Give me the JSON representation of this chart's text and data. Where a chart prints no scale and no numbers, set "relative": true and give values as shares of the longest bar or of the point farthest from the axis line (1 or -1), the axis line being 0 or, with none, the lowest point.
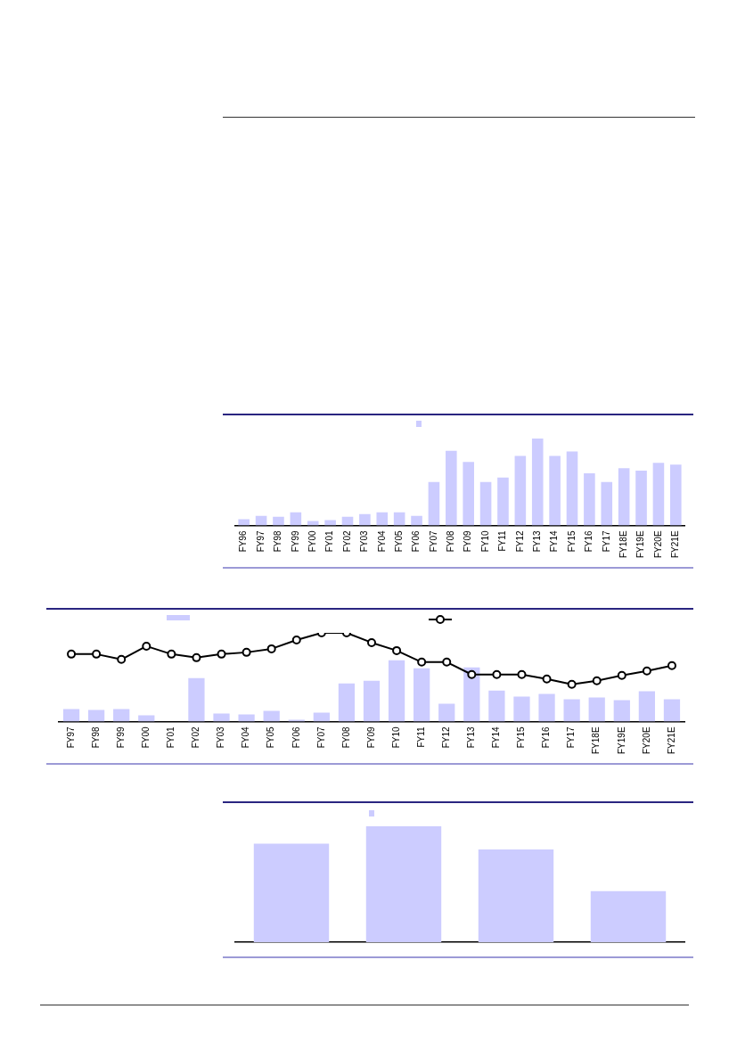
{
  "chart_data": [
    {
      "type": "bar",
      "relative": true,
      "grid": false,
      "categories": [
        "FY96",
        "FY97",
        "FY98",
        "FY99",
        "FY00",
        "FY01",
        "FY02",
        "FY03",
        "FY04",
        "FY05",
        "FY06",
        "FY07",
        "FY08",
        "FY09",
        "FY10",
        "FY11",
        "FY12",
        "FY13",
        "FY14",
        "FY15",
        "FY16",
        "FY17",
        "FY18E",
        "FY19E",
        "FY20E",
        "FY21E"
      ],
      "series": [
        {
          "color": "#ccccff",
          "values": [
            0.07,
            0.11,
            0.1,
            0.15,
            0.05,
            0.06,
            0.1,
            0.13,
            0.15,
            0.15,
            0.11,
            0.5,
            0.86,
            0.73,
            0.5,
            0.55,
            0.8,
            1,
            0.8,
            0.85,
            0.6,
            0.5,
            0.66,
            0.63,
            0.72,
            0.7
          ]
        }
      ]
    },
    {
      "type": "bar",
      "relative": true,
      "grid": false,
      "categories": [
        "FY97",
        "FY98",
        "FY99",
        "FY00",
        "FY01",
        "FY02",
        "FY03",
        "FY04",
        "FY05",
        "FY06",
        "FY07",
        "FY08",
        "FY09",
        "FY10",
        "FY11",
        "FY12",
        "FY13",
        "FY14",
        "FY15",
        "FY16",
        "FY17",
        "FY18E",
        "FY19E",
        "FY20E",
        "FY21E"
      ],
      "series": [
        {
          "color": "#ccccff",
          "values": [
            0.14,
            0.13,
            0.14,
            0.07,
            0,
            0.49,
            0.09,
            0.08,
            0.12,
            0.02,
            0.1,
            0.43,
            0.46,
            0.69,
            0.6,
            0.2,
            0.61,
            0.35,
            0.28,
            0.31,
            0.25,
            0.27,
            0.24,
            0.34,
            0.25
          ]
        },
        {
          "type": "line",
          "color": "#000000",
          "marker": "circle",
          "values": [
            0.76,
            0.76,
            0.7,
            0.85,
            0.76,
            0.72,
            0.76,
            0.78,
            0.82,
            0.92,
            1,
            1,
            0.89,
            0.8,
            0.67,
            0.67,
            0.53,
            0.53,
            0.53,
            0.48,
            0.42,
            0.46,
            0.52,
            0.57,
            0.63
          ]
        }
      ]
    },
    {
      "type": "bar",
      "relative": true,
      "grid": false,
      "categories": [
        null,
        null,
        null,
        null
      ],
      "series": [
        {
          "color": "#ccccff",
          "values": [
            0.85,
            1,
            0.8,
            0.44
          ]
        }
      ]
    }
  ]
}
